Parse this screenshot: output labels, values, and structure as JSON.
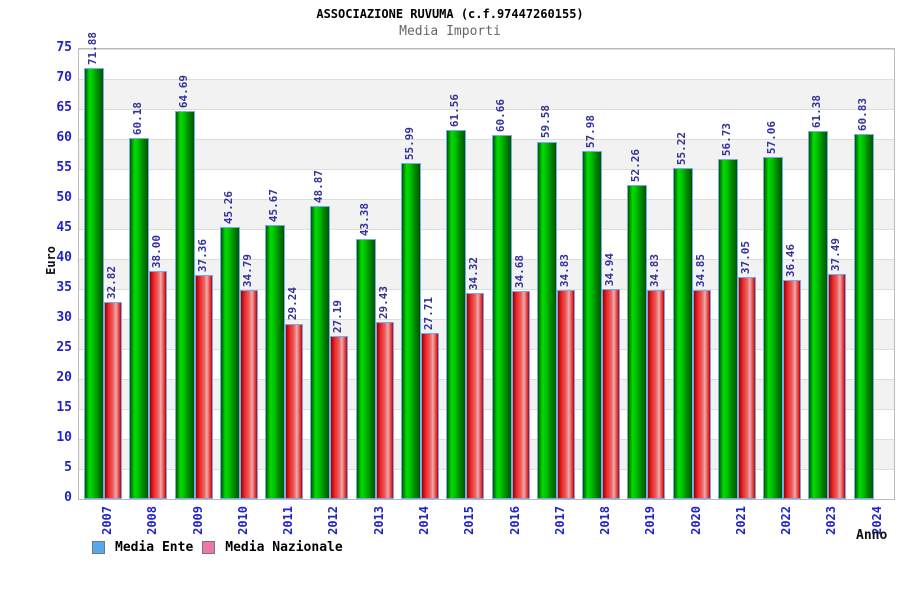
{
  "chart_data": {
    "type": "bar",
    "title": "ASSOCIAZIONE RUVUMA (c.f.97447260155)",
    "subtitle": "Media Importi",
    "xlabel": "Anno",
    "ylabel": "Euro",
    "ylim": [
      0,
      75
    ],
    "ytick_step": 5,
    "yticks": [
      0,
      5,
      10,
      15,
      20,
      25,
      30,
      35,
      40,
      45,
      50,
      55,
      60,
      65,
      70,
      75
    ],
    "grid": "horizontal-bands-alternating",
    "legend_position": "bottom-left",
    "value_label_decimals": 2,
    "categories": [
      "2007",
      "2008",
      "2009",
      "2010",
      "2011",
      "2012",
      "2013",
      "2014",
      "2015",
      "2016",
      "2017",
      "2018",
      "2019",
      "2020",
      "2021",
      "2022",
      "2023",
      "2024"
    ],
    "series": [
      {
        "name": "Media Ente",
        "bar_color": "#00c800",
        "legend_swatch_color": "#55aaee",
        "values": [
          71.88,
          60.18,
          64.69,
          45.26,
          45.67,
          48.87,
          43.38,
          55.99,
          61.56,
          60.66,
          59.58,
          57.98,
          52.26,
          55.22,
          56.73,
          57.06,
          61.38,
          60.83
        ]
      },
      {
        "name": "Media Nazionale",
        "bar_color": "#e82020",
        "legend_swatch_color": "#ee77aa",
        "values": [
          32.82,
          38.0,
          37.36,
          34.79,
          29.24,
          27.19,
          29.43,
          27.71,
          34.32,
          34.68,
          34.83,
          34.94,
          34.83,
          34.85,
          37.05,
          36.46,
          37.49,
          null
        ]
      }
    ]
  },
  "colors": {
    "background": "#ffffff",
    "title_text": "#000000",
    "subtitle_text": "#666666",
    "axis_tick_text": "#2222cc",
    "value_label_text": "#333399",
    "plot_border": "#bbbbbb",
    "band_gray": "#f2f2f2",
    "gridline": "#dddddd",
    "bar_border": "#77aaee"
  }
}
